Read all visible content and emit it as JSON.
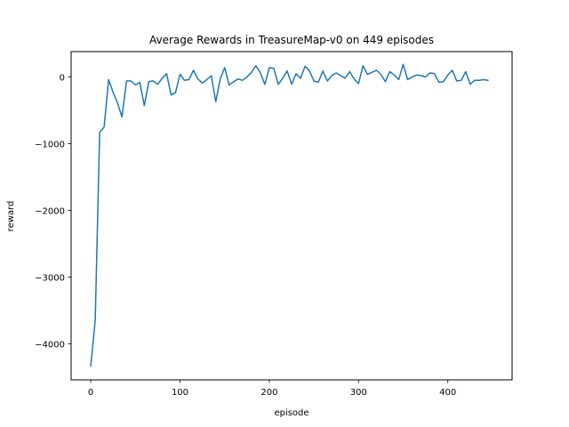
{
  "chart_data": {
    "type": "line",
    "title": "Average Rewards in TreasureMap-v0 on 449 episodes",
    "xlabel": "episode",
    "ylabel": "reward",
    "xlim": [
      -22,
      472
    ],
    "ylim": [
      -4540,
      380
    ],
    "x_ticks": [
      0,
      100,
      200,
      300,
      400
    ],
    "x_tick_labels": [
      "0",
      "100",
      "200",
      "300",
      "400"
    ],
    "y_ticks": [
      0,
      -1000,
      -2000,
      -3000,
      -4000
    ],
    "y_tick_labels": [
      "0",
      "−1000",
      "−2000",
      "−3000",
      "−4000"
    ],
    "grid": false,
    "line_color": "#1f77b4",
    "series": [
      {
        "x": [
          0,
          5,
          10,
          15,
          20,
          25,
          30,
          35,
          40,
          45,
          50,
          55,
          60,
          65,
          70,
          75,
          80,
          85,
          90,
          95,
          100,
          105,
          110,
          115,
          120,
          125,
          130,
          135,
          140,
          145,
          150,
          155,
          160,
          165,
          170,
          175,
          180,
          185,
          190,
          195,
          200,
          205,
          210,
          215,
          220,
          225,
          230,
          235,
          240,
          245,
          250,
          255,
          260,
          265,
          270,
          275,
          280,
          285,
          290,
          295,
          300,
          305,
          310,
          315,
          320,
          325,
          330,
          335,
          340,
          345,
          350,
          355,
          360,
          365,
          370,
          375,
          380,
          385,
          390,
          395,
          400,
          405,
          410,
          415,
          420,
          425,
          430,
          435,
          440,
          445
        ],
        "values": [
          -4330,
          -3650,
          -830,
          -750,
          -40,
          -230,
          -390,
          -600,
          -60,
          -60,
          -120,
          -80,
          -430,
          -70,
          -60,
          -110,
          -20,
          50,
          -270,
          -230,
          40,
          -50,
          -40,
          100,
          -30,
          -90,
          -40,
          20,
          -370,
          -30,
          140,
          -120,
          -70,
          -30,
          -50,
          0,
          70,
          170,
          60,
          -110,
          140,
          130,
          -110,
          -20,
          90,
          -110,
          50,
          -20,
          160,
          90,
          -60,
          -80,
          90,
          -60,
          20,
          60,
          20,
          -20,
          80,
          -30,
          -100,
          170,
          40,
          70,
          100,
          40,
          -70,
          80,
          30,
          -40,
          190,
          -40,
          0,
          30,
          20,
          0,
          60,
          50,
          -80,
          -70,
          30,
          100,
          -60,
          -50,
          80,
          -110,
          -50,
          -50,
          -40,
          -50
        ]
      }
    ]
  }
}
